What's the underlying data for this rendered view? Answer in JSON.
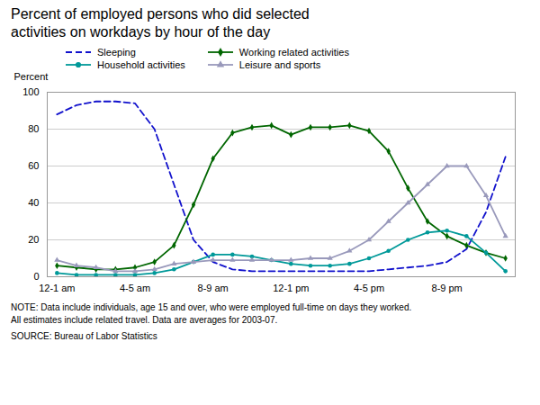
{
  "chart_data": {
    "type": "line",
    "title": "Percent of employed persons who did selected\nactivities on workdays by hour of the day",
    "ylabel": "Percent",
    "note": "NOTE: Data include individuals, age 15 and over, who were employed full-time on days they worked.\nAll estimates include related travel. Data are averages for 2003-07.",
    "source": "SOURCE: Bureau of Labor Statistics",
    "x": [
      0,
      1,
      2,
      3,
      4,
      5,
      6,
      7,
      8,
      9,
      10,
      11,
      12,
      13,
      14,
      15,
      16,
      17,
      18,
      19,
      20,
      21,
      22,
      23
    ],
    "xlim": [
      -0.5,
      23.5
    ],
    "xticks": [
      {
        "value": 0,
        "label": "12-1 am"
      },
      {
        "value": 4,
        "label": "4-5 am"
      },
      {
        "value": 8,
        "label": "8-9 am"
      },
      {
        "value": 12,
        "label": "12-1 pm"
      },
      {
        "value": 16,
        "label": "4-5 pm"
      },
      {
        "value": 20,
        "label": "8-9 pm"
      }
    ],
    "ylim": [
      0,
      100
    ],
    "yticks": [
      0,
      20,
      40,
      60,
      80,
      100
    ],
    "grid": "y",
    "legend": "top",
    "series": [
      {
        "name": "Sleeping",
        "color": "#1111CC",
        "line_style": "dashed",
        "values": [
          88,
          93,
          95,
          95,
          94,
          80,
          50,
          20,
          8,
          4,
          3,
          3,
          3,
          3,
          3,
          3,
          3,
          4,
          5,
          6,
          8,
          15,
          35,
          65
        ]
      },
      {
        "name": "Working related activities",
        "color": "#006600",
        "line_style": "solid",
        "marker": "diamond",
        "values": [
          6,
          5,
          4,
          4,
          5,
          8,
          17,
          39,
          64,
          78,
          81,
          82,
          77,
          81,
          81,
          82,
          79,
          68,
          48,
          30,
          22,
          17,
          13,
          10
        ]
      },
      {
        "name": "Household activities",
        "color": "#009999",
        "line_style": "solid",
        "marker": "circle",
        "values": [
          2,
          1,
          1,
          1,
          1,
          2,
          4,
          8,
          12,
          12,
          11,
          9,
          7,
          6,
          6,
          7,
          10,
          14,
          20,
          24,
          25,
          22,
          13,
          3
        ]
      },
      {
        "name": "Leisure and sports",
        "color": "#9999BB",
        "line_style": "solid",
        "marker": "triangle",
        "values": [
          9,
          6,
          5,
          3,
          3,
          4,
          7,
          8,
          9,
          9,
          9,
          9,
          9,
          10,
          10,
          14,
          20,
          30,
          40,
          50,
          60,
          60,
          44,
          22
        ]
      }
    ]
  }
}
